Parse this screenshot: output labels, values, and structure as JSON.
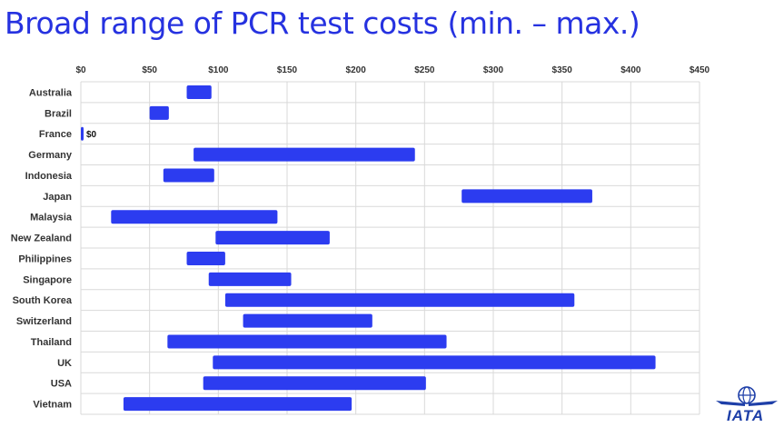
{
  "title": "Broad range of PCR test costs (min. – max.)",
  "logo_text": "IATA",
  "colors": {
    "bar": "#2c3cf0",
    "title": "#2632e0",
    "grid": "#d9d9d9"
  },
  "chart_data": {
    "type": "bar",
    "orientation": "horizontal",
    "style": "floating-range",
    "title": "Broad range of PCR test costs (min. – max.)",
    "xlabel": "",
    "ylabel": "",
    "xlim": [
      0,
      450
    ],
    "x_ticks": [
      0,
      50,
      100,
      150,
      200,
      250,
      300,
      350,
      400,
      450
    ],
    "x_tick_labels": [
      "$0",
      "$50",
      "$100",
      "$150",
      "$200",
      "$250",
      "$300",
      "$350",
      "$400",
      "$450"
    ],
    "x_axis_position": "top",
    "grid": true,
    "legend": "none",
    "categories": [
      "Australia",
      "Brazil",
      "France",
      "Germany",
      "Indonesia",
      "Japan",
      "Malaysia",
      "New Zealand",
      "Philippines",
      "Singapore",
      "South Korea",
      "Switzerland",
      "Thailand",
      "UK",
      "USA",
      "Vietnam"
    ],
    "min": [
      77,
      50,
      0,
      82,
      60,
      277,
      22,
      98,
      77,
      93,
      105,
      118,
      63,
      96,
      89,
      31
    ],
    "max": [
      95,
      64,
      0,
      243,
      97,
      372,
      143,
      181,
      105,
      153,
      359,
      212,
      266,
      418,
      251,
      197
    ],
    "data_labels": [
      {
        "category": "France",
        "text": "$0"
      }
    ]
  }
}
